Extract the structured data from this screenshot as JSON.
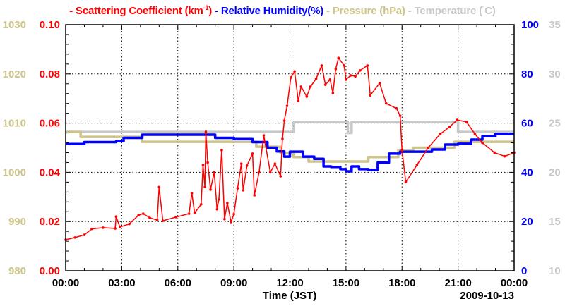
{
  "chart_data": {
    "type": "line",
    "title_parts": {
      "scattering": "- Scattering Coefficient (km",
      "scattering_sup": "-1",
      "scattering_end": ")",
      "humidity": " - Relative Humidity(%)",
      "pressure": " - Pressure (hPa)",
      "temperature_a": " - Temperature (",
      "temperature_sup": "°",
      "temperature_b": "C)"
    },
    "xlabel": "Time (JST)",
    "date_label": "2009-10-13",
    "x_range_hours": [
      0,
      24
    ],
    "x_ticks": [
      "00:00",
      "03:00",
      "06:00",
      "09:00",
      "12:00",
      "15:00",
      "18:00",
      "21:00",
      "00:00"
    ],
    "grid": true,
    "colors": {
      "scattering": "#ff0000",
      "humidity": "#0000ff",
      "pressure": "#cdc48a",
      "temperature": "#c8c8c8"
    },
    "axes": {
      "scattering": {
        "side": "left-inner",
        "range": [
          0,
          0.1
        ],
        "ticks": [
          "0.00",
          "0.02",
          "0.04",
          "0.06",
          "0.08",
          "0.10"
        ]
      },
      "pressure": {
        "side": "left-outer",
        "range": [
          980,
          1030
        ],
        "ticks": [
          "980",
          "990",
          "1000",
          "1010",
          "1020",
          "1030"
        ]
      },
      "humidity": {
        "side": "right-inner",
        "range": [
          0,
          100
        ],
        "ticks": [
          "0",
          "20",
          "40",
          "60",
          "80",
          "100"
        ]
      },
      "temperature": {
        "side": "right-outer",
        "range": [
          10,
          35
        ],
        "ticks": [
          "10",
          "15",
          "20",
          "25",
          "30",
          "35"
        ]
      }
    },
    "series": [
      {
        "name": "Scattering Coefficient",
        "axis": "scattering",
        "step": false,
        "markers": true,
        "x": [
          0,
          0.5,
          1.0,
          1.4,
          2.0,
          2.65,
          2.7,
          2.9,
          3.4,
          3.9,
          4.15,
          4.5,
          4.9,
          5.0,
          5.2,
          5.9,
          6.6,
          6.75,
          6.9,
          7.25,
          7.35,
          7.45,
          7.5,
          7.6,
          7.75,
          7.95,
          8.1,
          8.2,
          8.35,
          8.5,
          8.65,
          8.85,
          9.0,
          9.2,
          9.4,
          9.5,
          9.7,
          10.0,
          10.1,
          10.35,
          10.6,
          10.95,
          11.2,
          11.5,
          11.6,
          11.7,
          11.85,
          12.05,
          12.25,
          12.45,
          12.6,
          12.9,
          13.1,
          13.4,
          13.7,
          13.9,
          14.15,
          14.3,
          14.45,
          14.6,
          14.9,
          15.0,
          15.25,
          15.5,
          15.75,
          16.15,
          16.3,
          16.8,
          17.15,
          17.7,
          17.9,
          18.0,
          18.2,
          18.8,
          19.4,
          20.05,
          20.55,
          20.95,
          21.45,
          21.9,
          22.3,
          22.95,
          23.5,
          24
        ],
        "y": [
          0.0126,
          0.0135,
          0.0146,
          0.017,
          0.0175,
          0.0172,
          0.022,
          0.0178,
          0.019,
          0.0226,
          0.0232,
          0.0215,
          0.0206,
          0.034,
          0.0203,
          0.0218,
          0.0232,
          0.0315,
          0.0235,
          0.027,
          0.043,
          0.034,
          0.0565,
          0.044,
          0.033,
          0.04,
          0.025,
          0.029,
          0.049,
          0.021,
          0.0275,
          0.0198,
          0.023,
          0.0335,
          0.0435,
          0.0327,
          0.0427,
          0.0476,
          0.0307,
          0.04,
          0.055,
          0.04,
          0.0435,
          0.0384,
          0.0536,
          0.061,
          0.067,
          0.0785,
          0.081,
          0.069,
          0.0748,
          0.0708,
          0.0748,
          0.078,
          0.0834,
          0.0756,
          0.0777,
          0.0722,
          0.082,
          0.0865,
          0.0834,
          0.0777,
          0.0794,
          0.079,
          0.0814,
          0.0834,
          0.0713,
          0.0762,
          0.068,
          0.066,
          0.063,
          0.049,
          0.036,
          0.043,
          0.05,
          0.0556,
          0.0585,
          0.0613,
          0.0605,
          0.0556,
          0.052,
          0.048,
          0.0465,
          0.048
        ]
      },
      {
        "name": "Relative Humidity",
        "axis": "humidity",
        "step": true,
        "markers": false,
        "x": [
          0,
          1.0,
          2.7,
          3.1,
          4.1,
          7.5,
          8.0,
          9.0,
          10.0,
          10.8,
          11.3,
          11.7,
          12.0,
          12.7,
          13.3,
          13.8,
          14.2,
          14.7,
          15.0,
          15.3,
          15.7,
          16.2,
          16.7,
          17.3,
          17.9,
          19.6,
          20.3,
          21.0,
          21.7,
          22.3,
          23.0,
          24
        ],
        "y": [
          51.5,
          52.3,
          52.7,
          54,
          55.3,
          55.3,
          54,
          53.5,
          52.3,
          50,
          48.5,
          46.4,
          48.4,
          46.4,
          45.5,
          42.4,
          42.2,
          41.3,
          40.4,
          42.4,
          41.3,
          41,
          44,
          47.6,
          48.4,
          49.3,
          51.3,
          51.6,
          53.3,
          54.7,
          55.6,
          55.6
        ]
      },
      {
        "name": "Pressure",
        "axis": "pressure",
        "step": true,
        "markers": false,
        "x": [
          0,
          0.8,
          4.1,
          10.2,
          11.5,
          12.2,
          13.0,
          16.2,
          17.8,
          18.6,
          20.8,
          24
        ],
        "y": [
          1008.2,
          1007.2,
          1006.2,
          1005.2,
          1003.9,
          1003.1,
          1002.2,
          1003.1,
          1004.5,
          1005.0,
          1006.2,
          1006.2
        ]
      },
      {
        "name": "Temperature",
        "axis": "temperature",
        "step": true,
        "markers": false,
        "x": [
          0,
          12.2,
          15.1,
          15.3,
          21.0,
          24
        ],
        "y": [
          24.1,
          25.1,
          24.0,
          25.1,
          24.1,
          24.1
        ]
      }
    ]
  }
}
